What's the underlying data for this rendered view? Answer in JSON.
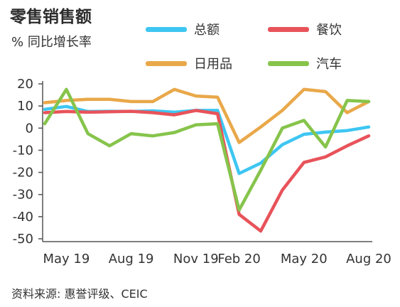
{
  "title": "零售销售额",
  "subtitle": "% 同比增长率",
  "source": "资料来源: 惠誉评级、CEIC",
  "chart_data": {
    "type": "line",
    "x": [
      "2019-04",
      "2019-05",
      "2019-06",
      "2019-07",
      "2019-08",
      "2019-09",
      "2019-10",
      "2019-11",
      "2019-12",
      "2020-02",
      "2020-03",
      "2020-04",
      "2020-05",
      "2020-06",
      "2020-07",
      "2020-08"
    ],
    "xticks": [
      "May 19",
      "Aug 19",
      "Nov 19",
      "Feb 20",
      "May 20",
      "Aug 20"
    ],
    "ylim": [
      -50,
      20
    ],
    "yticks": [
      20,
      10,
      0,
      -10,
      -20,
      -30,
      -40,
      -50
    ],
    "grid": false,
    "series": [
      {
        "name": "总额",
        "color": "#3ec6f2",
        "values": [
          8.5,
          9.8,
          7.5,
          7.6,
          7.5,
          7.8,
          7.2,
          8.0,
          8.0,
          -20.5,
          -15.8,
          -7.5,
          -2.8,
          -1.8,
          -1.1,
          0.5
        ]
      },
      {
        "name": "餐饮",
        "color": "#e8535a",
        "values": [
          7.0,
          7.5,
          7.2,
          7.4,
          7.6,
          7.0,
          6.0,
          8.0,
          6.5,
          -39.0,
          -46.5,
          -28.0,
          -15.5,
          -13.0,
          -8.0,
          -3.5
        ]
      },
      {
        "name": "日用品",
        "color": "#e9a84a",
        "values": [
          11.5,
          12.5,
          13.0,
          13.0,
          12.0,
          12.0,
          17.5,
          14.5,
          14.0,
          -6.5,
          0.5,
          8.0,
          17.5,
          16.5,
          7.0,
          12.0
        ]
      },
      {
        "name": "汽车",
        "color": "#86c44b",
        "values": [
          2.0,
          17.5,
          -2.5,
          -8.0,
          -2.5,
          -3.5,
          -2.0,
          1.5,
          2.0,
          -37.0,
          -19.0,
          0.0,
          3.5,
          -8.5,
          12.5,
          12.0
        ]
      }
    ]
  }
}
